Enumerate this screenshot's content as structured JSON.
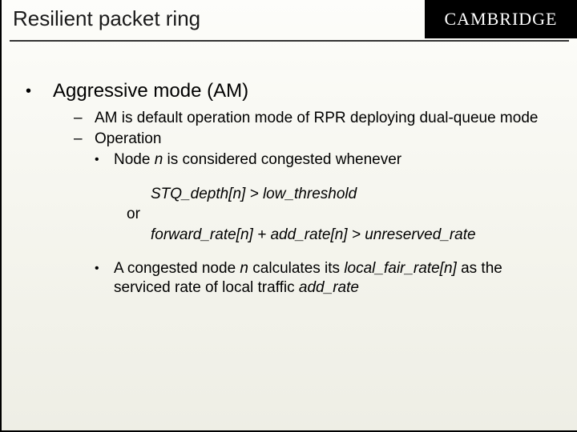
{
  "slide": {
    "title": "Resilient packet ring",
    "logo": "CAMBRIDGE"
  },
  "content": {
    "l1_bullet": "•",
    "l1_text": "Aggressive mode (AM)",
    "l2a_bullet": "–",
    "l2a_text": "AM is default operation mode of RPR deploying dual-queue mode",
    "l2b_bullet": "–",
    "l2b_text": "Operation",
    "l3a_bullet": "•",
    "l3a_prefix": "Node ",
    "l3a_var": "n",
    "l3a_suffix": " is considered congested whenever",
    "cond1": "STQ_depth[n] > low_threshold",
    "cond_or": "or",
    "cond2": "forward_rate[n] + add_rate[n] > unreserved_rate",
    "l3b_bullet": "•",
    "l3b_p1": "A congested node ",
    "l3b_v1": "n",
    "l3b_p2": " calculates its ",
    "l3b_v2": "local_fair_rate[n]",
    "l3b_p3": " as the serviced rate of local traffic ",
    "l3b_v3": "add_rate"
  }
}
